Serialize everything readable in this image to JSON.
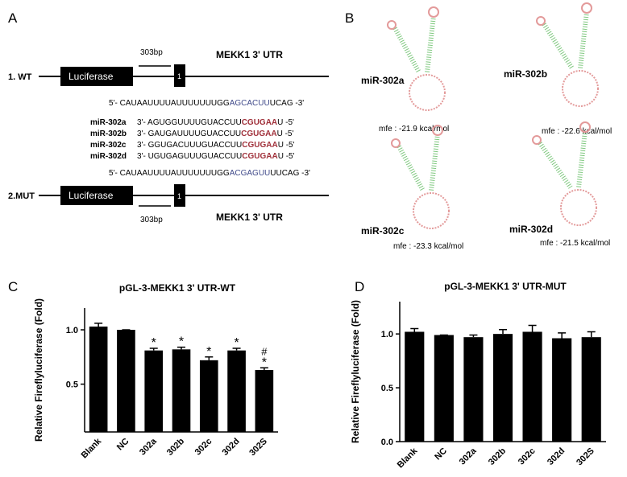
{
  "panel_a": {
    "label": "A",
    "wt_label": "1. WT",
    "mut_label": "2.MUT",
    "luciferase": "Luciferase",
    "site": "1",
    "bp": "303bp",
    "utr": "MEKK1 3' UTR",
    "wt_seq": [
      "5'- CAUAAUUUUAUUUUUUUGG",
      "AGCACUU",
      "UCAG -3'"
    ],
    "mut_seq": [
      "5'- CAUAAUUUUAUUUUUUUGG",
      "ACGAGUU",
      "UUCAG -3'"
    ],
    "mirnas": [
      {
        "name": "miR-302a",
        "seq": [
          "3'- AGUGGUUUUGUACCUU",
          "CGUGAA",
          "U -5'"
        ]
      },
      {
        "name": "miR-302b",
        "seq": [
          "3'- GAUGAUUUUGUACCUU",
          "CGUGAA",
          "U -5'"
        ]
      },
      {
        "name": "miR-302c",
        "seq": [
          "3'- GGUGACUUUGUACCUU",
          "CGUGAA",
          "U -5'"
        ]
      },
      {
        "name": "miR-302d",
        "seq": [
          "3'- UGUGAGUUUGUACCUU",
          "CGUGAA",
          "U -5'"
        ]
      }
    ]
  },
  "panel_b": {
    "label": "B",
    "structures": [
      {
        "name": "miR-302a",
        "mfe": "mfe : -21.9 kcal/mol"
      },
      {
        "name": "miR-302b",
        "mfe": "mfe : -22.6 kcal/mol"
      },
      {
        "name": "miR-302c",
        "mfe": "mfe : -23.3 kcal/mol"
      },
      {
        "name": "miR-302d",
        "mfe": "mfe : -21.5 kcal/mol"
      }
    ]
  },
  "chart_data": [
    {
      "type": "bar",
      "label": "C",
      "title": "pGL-3-MEKK1 3' UTR-WT",
      "y_label": "Relative Fireflyluciferase (Fold)",
      "color": "#000000",
      "categories": [
        "Blank",
        "NC",
        "302a",
        "302b",
        "302c",
        "302d",
        "302S"
      ],
      "values": [
        1.03,
        1.0,
        0.81,
        0.82,
        0.72,
        0.81,
        0.63
      ],
      "errors": [
        0.03,
        0,
        0.02,
        0.02,
        0.03,
        0.02,
        0.02
      ],
      "significance": [
        null,
        null,
        "*",
        "*",
        "*",
        "*",
        "*"
      ],
      "significance2": [
        null,
        null,
        null,
        null,
        null,
        null,
        "#"
      ],
      "ylim": [
        0.06,
        1.2
      ],
      "yticks": [
        0.5,
        {
          "value": 1,
          "label": "1.0"
        }
      ]
    },
    {
      "type": "bar",
      "label": "D",
      "title": "pGL-3-MEKK1 3' UTR-MUT",
      "y_label": "Relative Fireflyluciferase (Fold)",
      "color": "#000000",
      "categories": [
        "Blank",
        "NC",
        "302a",
        "302b",
        "302c",
        "302d",
        "302S"
      ],
      "values": [
        1.02,
        0.99,
        0.97,
        1.0,
        1.02,
        0.96,
        0.97
      ],
      "errors": [
        0.03,
        0,
        0.02,
        0.04,
        0.06,
        0.05,
        0.05
      ],
      "ylim": [
        0,
        1.3
      ],
      "yticks": [
        {
          "value": 0,
          "label": "0.0"
        },
        0.5,
        {
          "value": 1,
          "label": "1.0"
        }
      ]
    }
  ]
}
